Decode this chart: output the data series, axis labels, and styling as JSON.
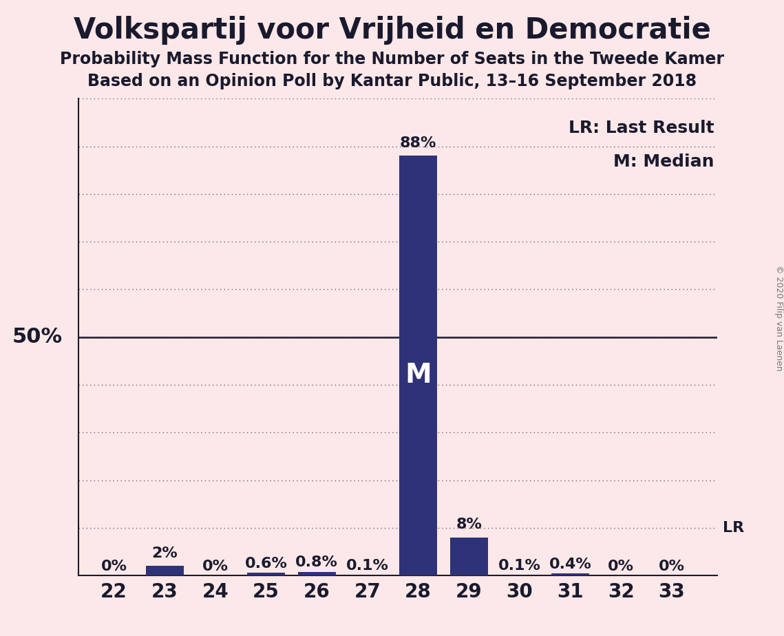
{
  "title": "Volkspartij voor Vrijheid en Democratie",
  "subtitle1": "Probability Mass Function for the Number of Seats in the Tweede Kamer",
  "subtitle2": "Based on an Opinion Poll by Kantar Public, 13–16 September 2018",
  "copyright": "© 2020 Filip van Laenen",
  "categories": [
    22,
    23,
    24,
    25,
    26,
    27,
    28,
    29,
    30,
    31,
    32,
    33
  ],
  "values": [
    0.0,
    2.0,
    0.0,
    0.6,
    0.8,
    0.1,
    88.0,
    8.0,
    0.1,
    0.4,
    0.0,
    0.0
  ],
  "bar_color": "#2e3278",
  "background_color": "#fce8e8",
  "text_color": "#1a1a2e",
  "ylabel_text": "50%",
  "ylabel_value": 50,
  "ylim": [
    0,
    100
  ],
  "yticks": [
    10,
    20,
    30,
    40,
    50,
    60,
    70,
    80,
    90,
    100
  ],
  "median_seat": 28,
  "lr_value": 10,
  "legend_lr": "LR: Last Result",
  "legend_m": "M: Median",
  "bar_labels": [
    "0%",
    "2%",
    "0%",
    "0.6%",
    "0.8%",
    "0.1%",
    "88%",
    "8%",
    "0.1%",
    "0.4%",
    "0%",
    "0%"
  ],
  "title_fontsize": 30,
  "subtitle_fontsize": 17,
  "axis_tick_fontsize": 20,
  "bar_label_fontsize": 16,
  "legend_fontsize": 18,
  "ylabel_fontsize": 22,
  "copyright_fontsize": 9,
  "M_fontsize": 28
}
